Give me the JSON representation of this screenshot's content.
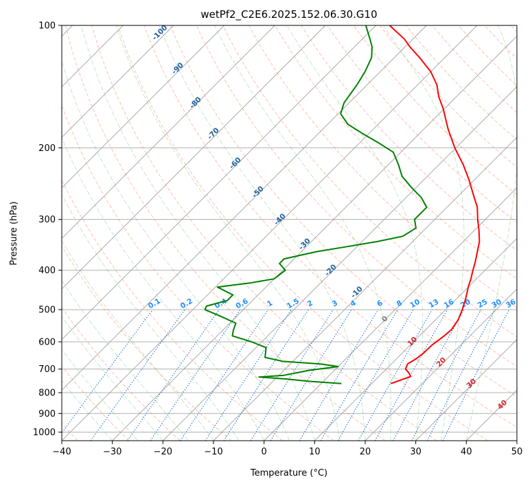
{
  "chart_data": {
    "type": "line",
    "subtype": "skew-t log-p diagram",
    "title": "wetPf2_C2E6.2025.152.06.30.G10",
    "xlabel": "Temperature (°C)",
    "ylabel": "Pressure (hPa)",
    "xlim": [
      -40,
      50
    ],
    "ylim": [
      1050,
      100
    ],
    "y_scale": "log",
    "x_ticks": [
      -40,
      -30,
      -20,
      -10,
      0,
      10,
      20,
      30,
      40,
      50
    ],
    "y_ticks": [
      100,
      200,
      300,
      400,
      500,
      600,
      700,
      800,
      900,
      1000
    ],
    "grid": true,
    "series": [
      {
        "type": "temperature profile",
        "color": "#ff0000",
        "points": [
          {
            "p": 760,
            "t": 13.8
          },
          {
            "p": 745,
            "t": 15.0
          },
          {
            "p": 730,
            "t": 16.3
          },
          {
            "p": 715,
            "t": 15.2
          },
          {
            "p": 700,
            "t": 13.8
          },
          {
            "p": 680,
            "t": 13.2
          },
          {
            "p": 660,
            "t": 13.9
          },
          {
            "p": 640,
            "t": 14.2
          },
          {
            "p": 610,
            "t": 14.3
          },
          {
            "p": 580,
            "t": 14.9
          },
          {
            "p": 560,
            "t": 15.1
          },
          {
            "p": 530,
            "t": 14.5
          },
          {
            "p": 500,
            "t": 13.3
          },
          {
            "p": 470,
            "t": 11.8
          },
          {
            "p": 440,
            "t": 10.0
          },
          {
            "p": 420,
            "t": 8.9
          },
          {
            "p": 400,
            "t": 7.6
          },
          {
            "p": 380,
            "t": 6.3
          },
          {
            "p": 360,
            "t": 4.8
          },
          {
            "p": 340,
            "t": 3.2
          },
          {
            "p": 320,
            "t": 1.0
          },
          {
            "p": 300,
            "t": -1.5
          },
          {
            "p": 280,
            "t": -4.0
          },
          {
            "p": 260,
            "t": -7.4
          },
          {
            "p": 240,
            "t": -11.0
          },
          {
            "p": 220,
            "t": -15.2
          },
          {
            "p": 200,
            "t": -20.2
          },
          {
            "p": 180,
            "t": -25.2
          },
          {
            "p": 160,
            "t": -30.3
          },
          {
            "p": 150,
            "t": -33.4
          },
          {
            "p": 140,
            "t": -36.2
          },
          {
            "p": 130,
            "t": -40.0
          },
          {
            "p": 120,
            "t": -45.0
          },
          {
            "p": 113,
            "t": -49.0
          },
          {
            "p": 108,
            "t": -51.7
          },
          {
            "p": 100,
            "t": -57.3
          }
        ]
      },
      {
        "type": "dewpoint profile",
        "color": "#008000",
        "points": [
          {
            "p": 760,
            "t": 4.0
          },
          {
            "p": 750,
            "t": -3.0
          },
          {
            "p": 740,
            "t": -8.0
          },
          {
            "p": 732,
            "t": -13.6
          },
          {
            "p": 725,
            "t": -9.0
          },
          {
            "p": 715,
            "t": -7.0
          },
          {
            "p": 705,
            "t": -5.0
          },
          {
            "p": 690,
            "t": 0.0
          },
          {
            "p": 680,
            "t": -4.0
          },
          {
            "p": 670,
            "t": -12.0
          },
          {
            "p": 655,
            "t": -16.3
          },
          {
            "p": 640,
            "t": -17.0
          },
          {
            "p": 620,
            "t": -18.0
          },
          {
            "p": 600,
            "t": -22.0
          },
          {
            "p": 580,
            "t": -27.0
          },
          {
            "p": 560,
            "t": -28.0
          },
          {
            "p": 540,
            "t": -28.8
          },
          {
            "p": 520,
            "t": -33.0
          },
          {
            "p": 500,
            "t": -37.6
          },
          {
            "p": 490,
            "t": -38.0
          },
          {
            "p": 475,
            "t": -35.0
          },
          {
            "p": 460,
            "t": -35.0
          },
          {
            "p": 440,
            "t": -39.6
          },
          {
            "p": 430,
            "t": -34.0
          },
          {
            "p": 420,
            "t": -30.0
          },
          {
            "p": 400,
            "t": -29.5
          },
          {
            "p": 385,
            "t": -32.0
          },
          {
            "p": 375,
            "t": -32.0
          },
          {
            "p": 360,
            "t": -27.0
          },
          {
            "p": 350,
            "t": -22.0
          },
          {
            "p": 340,
            "t": -17.0
          },
          {
            "p": 330,
            "t": -13.0
          },
          {
            "p": 315,
            "t": -12.0
          },
          {
            "p": 300,
            "t": -14.0
          },
          {
            "p": 290,
            "t": -14.0
          },
          {
            "p": 280,
            "t": -14.0
          },
          {
            "p": 265,
            "t": -17.0
          },
          {
            "p": 250,
            "t": -21.0
          },
          {
            "p": 235,
            "t": -25.0
          },
          {
            "p": 220,
            "t": -28.0
          },
          {
            "p": 205,
            "t": -31.5
          },
          {
            "p": 195,
            "t": -36.0
          },
          {
            "p": 185,
            "t": -41.0
          },
          {
            "p": 175,
            "t": -46.0
          },
          {
            "p": 165,
            "t": -49.5
          },
          {
            "p": 155,
            "t": -51.0
          },
          {
            "p": 140,
            "t": -52.0
          },
          {
            "p": 130,
            "t": -53.0
          },
          {
            "p": 120,
            "t": -54.5
          },
          {
            "p": 113,
            "t": -56.5
          },
          {
            "p": 108,
            "t": -58.5
          },
          {
            "p": 100,
            "t": -62.0
          }
        ]
      }
    ],
    "isotherms_step": 10,
    "dry_adiabat_labels": [
      "-100",
      "-90",
      "-80",
      "-70",
      "-60",
      "-50",
      "-40",
      "-30",
      "-20",
      "-10"
    ],
    "mixing_ratio_labels": [
      "0.1",
      "0.2",
      "0.4",
      "0.6",
      "1",
      "1.5",
      "2",
      "3",
      "4",
      "6",
      "8",
      "10",
      "13",
      "16",
      "20",
      "25",
      "30",
      "36"
    ],
    "warm_dry_adiabat_labels": [
      "0",
      "10",
      "20",
      "30",
      "40"
    ],
    "colors": {
      "isotherm": "#808080",
      "dry_adiabat": "#ff6f4d",
      "moist_adiabat": "#5cb85c",
      "mixing_ratio": "#1f77d4",
      "dry_label": "#1f5f9f",
      "warm_label": "#d62728"
    }
  }
}
